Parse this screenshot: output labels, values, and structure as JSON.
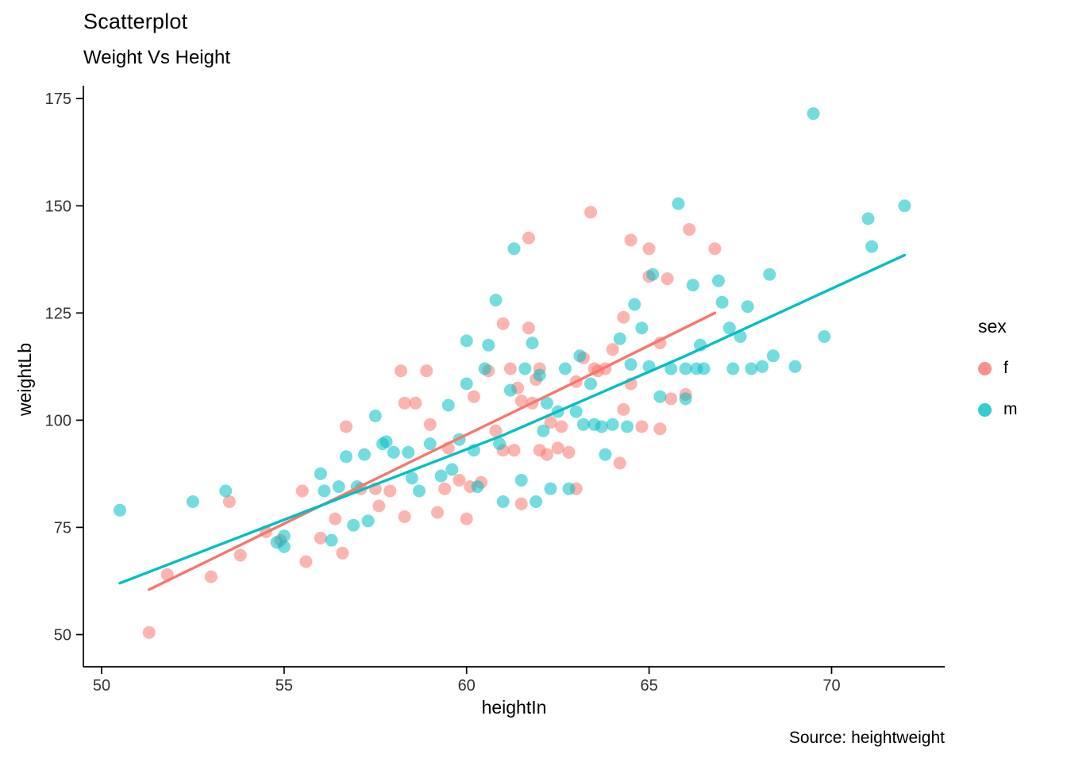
{
  "chart_data": {
    "type": "scatter",
    "title": "Scatterplot",
    "subtitle": "Weight Vs Height",
    "xlabel": "heightIn",
    "ylabel": "weightLb",
    "caption": "Source: heightweight",
    "legend_title": "sex",
    "legend_position": "right",
    "grid": false,
    "xlim": [
      49.5,
      73.1
    ],
    "ylim": [
      42.5,
      178
    ],
    "x_ticks": [
      50,
      55,
      60,
      65,
      70
    ],
    "y_ticks": [
      50,
      75,
      100,
      125,
      150,
      175
    ],
    "series": [
      {
        "name": "f",
        "color": "#F8766D",
        "trend": [
          [
            51.3,
            60.5
          ],
          [
            59.0,
            92.5
          ],
          [
            63.0,
            109.0
          ],
          [
            66.8,
            125.0
          ]
        ],
        "points": [
          [
            51.3,
            50.5
          ],
          [
            51.8,
            64
          ],
          [
            53.0,
            63.5
          ],
          [
            53.5,
            81
          ],
          [
            53.8,
            68.5
          ],
          [
            54.5,
            74
          ],
          [
            54.9,
            72
          ],
          [
            55.5,
            83.5
          ],
          [
            55.6,
            67
          ],
          [
            56.0,
            72.5
          ],
          [
            56.4,
            77
          ],
          [
            56.6,
            69
          ],
          [
            56.7,
            98.5
          ],
          [
            57.1,
            84
          ],
          [
            57.5,
            84
          ],
          [
            57.6,
            80
          ],
          [
            57.9,
            83.5
          ],
          [
            58.2,
            111.5
          ],
          [
            58.3,
            77.5
          ],
          [
            58.3,
            104
          ],
          [
            58.6,
            104
          ],
          [
            58.9,
            111.5
          ],
          [
            59.0,
            99
          ],
          [
            59.2,
            78.5
          ],
          [
            59.4,
            84
          ],
          [
            59.5,
            93.5
          ],
          [
            59.8,
            86
          ],
          [
            60.0,
            77
          ],
          [
            60.1,
            84.5
          ],
          [
            60.2,
            105.5
          ],
          [
            60.4,
            85.5
          ],
          [
            60.6,
            111.5
          ],
          [
            60.8,
            97.5
          ],
          [
            61.0,
            122.5
          ],
          [
            61.0,
            93
          ],
          [
            61.2,
            112
          ],
          [
            61.3,
            93
          ],
          [
            61.4,
            107.5
          ],
          [
            61.5,
            104.5
          ],
          [
            61.5,
            80.5
          ],
          [
            61.7,
            142.5
          ],
          [
            61.7,
            121.5
          ],
          [
            61.8,
            104
          ],
          [
            61.9,
            109.5
          ],
          [
            62.0,
            112
          ],
          [
            62.0,
            93
          ],
          [
            62.2,
            92
          ],
          [
            62.3,
            99.5
          ],
          [
            62.5,
            93.5
          ],
          [
            62.6,
            98.5
          ],
          [
            62.8,
            92.5
          ],
          [
            63.0,
            109
          ],
          [
            63.0,
            84
          ],
          [
            63.2,
            114.5
          ],
          [
            63.4,
            148.5
          ],
          [
            63.5,
            112
          ],
          [
            63.6,
            111.5
          ],
          [
            63.8,
            112
          ],
          [
            64.0,
            116.5
          ],
          [
            64.2,
            90
          ],
          [
            64.3,
            124
          ],
          [
            64.3,
            102.5
          ],
          [
            64.5,
            142
          ],
          [
            64.5,
            108.5
          ],
          [
            64.8,
            98.5
          ],
          [
            65.0,
            140
          ],
          [
            65.0,
            133.5
          ],
          [
            65.3,
            118
          ],
          [
            65.3,
            98
          ],
          [
            65.5,
            133
          ],
          [
            65.6,
            105
          ],
          [
            66.0,
            106
          ],
          [
            66.1,
            144.5
          ],
          [
            66.8,
            140
          ]
        ]
      },
      {
        "name": "m",
        "color": "#00BFC4",
        "trend": [
          [
            50.5,
            62.0
          ],
          [
            61.0,
            96.5
          ],
          [
            66.0,
            115.0
          ],
          [
            72.0,
            138.5
          ]
        ],
        "points": [
          [
            50.5,
            79
          ],
          [
            52.5,
            81
          ],
          [
            53.4,
            83.5
          ],
          [
            54.8,
            71.5
          ],
          [
            55.0,
            70.5
          ],
          [
            55.0,
            73
          ],
          [
            56.0,
            87.5
          ],
          [
            56.1,
            83.5
          ],
          [
            56.3,
            72
          ],
          [
            56.5,
            84.5
          ],
          [
            56.7,
            91.5
          ],
          [
            56.9,
            75.5
          ],
          [
            57.0,
            84.5
          ],
          [
            57.2,
            92
          ],
          [
            57.3,
            76.5
          ],
          [
            57.5,
            101
          ],
          [
            57.7,
            94.5
          ],
          [
            57.8,
            95
          ],
          [
            58.0,
            92.5
          ],
          [
            58.4,
            92.5
          ],
          [
            58.5,
            86.5
          ],
          [
            58.7,
            83.5
          ],
          [
            59.0,
            94.5
          ],
          [
            59.3,
            87
          ],
          [
            59.5,
            103.5
          ],
          [
            59.6,
            88.5
          ],
          [
            59.8,
            95.5
          ],
          [
            60.0,
            108.5
          ],
          [
            60.0,
            118.5
          ],
          [
            60.2,
            93
          ],
          [
            60.3,
            84.5
          ],
          [
            60.5,
            112
          ],
          [
            60.6,
            117.5
          ],
          [
            60.8,
            128
          ],
          [
            60.9,
            94.5
          ],
          [
            61.0,
            81
          ],
          [
            61.2,
            107
          ],
          [
            61.3,
            140
          ],
          [
            61.5,
            86
          ],
          [
            61.6,
            112
          ],
          [
            61.8,
            118
          ],
          [
            61.9,
            81
          ],
          [
            62.0,
            110.5
          ],
          [
            62.1,
            97.5
          ],
          [
            62.2,
            104
          ],
          [
            62.3,
            84
          ],
          [
            62.5,
            102
          ],
          [
            62.7,
            112
          ],
          [
            62.8,
            84
          ],
          [
            63.0,
            102
          ],
          [
            63.1,
            115
          ],
          [
            63.2,
            99
          ],
          [
            63.4,
            108.5
          ],
          [
            63.5,
            99
          ],
          [
            63.7,
            98.5
          ],
          [
            63.8,
            92
          ],
          [
            64.0,
            99
          ],
          [
            64.2,
            119
          ],
          [
            64.4,
            98.5
          ],
          [
            64.5,
            113
          ],
          [
            64.6,
            127
          ],
          [
            64.8,
            121.5
          ],
          [
            65.0,
            112.5
          ],
          [
            65.1,
            134
          ],
          [
            65.3,
            105.5
          ],
          [
            65.8,
            150.5
          ],
          [
            65.6,
            112
          ],
          [
            66.0,
            112
          ],
          [
            66.0,
            105
          ],
          [
            66.2,
            131.5
          ],
          [
            66.3,
            112
          ],
          [
            66.4,
            117.5
          ],
          [
            66.5,
            112
          ],
          [
            66.9,
            132.5
          ],
          [
            67.0,
            127.5
          ],
          [
            67.2,
            121.5
          ],
          [
            67.3,
            112
          ],
          [
            67.5,
            119.5
          ],
          [
            67.7,
            126.5
          ],
          [
            67.8,
            112
          ],
          [
            68.1,
            112.5
          ],
          [
            68.3,
            134
          ],
          [
            68.4,
            115
          ],
          [
            69.0,
            112.5
          ],
          [
            69.5,
            171.5
          ],
          [
            69.8,
            119.5
          ],
          [
            71.0,
            147
          ],
          [
            71.1,
            140.5
          ],
          [
            72.0,
            150
          ]
        ]
      }
    ]
  }
}
